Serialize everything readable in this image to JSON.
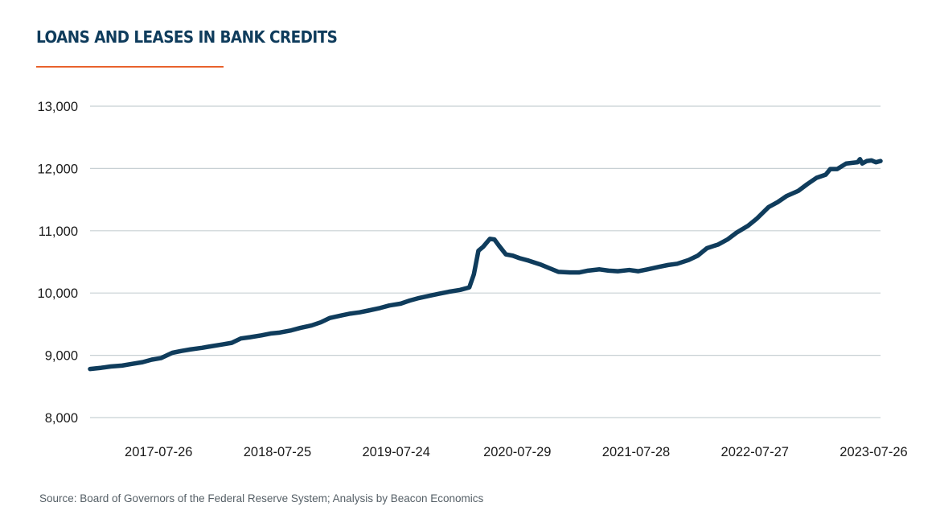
{
  "header": {
    "title": "LOANS AND LEASES IN BANK CREDITS"
  },
  "footer": {
    "source": "Source: Board of Governors of the Federal Reserve System; Analysis by Beacon Economics"
  },
  "colors": {
    "line": "#0f3c5c",
    "grid": "#c8d0d4",
    "accent": "#e8622c"
  },
  "chart_data": {
    "type": "line",
    "title": "LOANS AND LEASES IN BANK CREDITS",
    "xlabel": "",
    "ylabel": "",
    "grid": true,
    "ylim": [
      8000,
      13000
    ],
    "xlim": [
      "2016-12-28",
      "2023-08-16"
    ],
    "y_ticks": [
      8000,
      9000,
      10000,
      11000,
      12000,
      13000
    ],
    "y_tick_labels": [
      "8,000",
      "9,000",
      "10,000",
      "11,000",
      "12,000",
      "13,000"
    ],
    "x_ticks": [
      "2017-07-26",
      "2018-07-25",
      "2019-07-24",
      "2020-07-29",
      "2021-07-28",
      "2022-07-27",
      "2023-07-26"
    ],
    "x_tick_labels": [
      "2017-07-26",
      "2018-07-25",
      "2019-07-24",
      "2020-07-29",
      "2021-07-28",
      "2022-07-27",
      "2023-07-26"
    ],
    "series": [
      {
        "points": [
          [
            "2016-12-28",
            8780
          ],
          [
            "2017-02-01",
            8800
          ],
          [
            "2017-03-01",
            8820
          ],
          [
            "2017-04-05",
            8835
          ],
          [
            "2017-05-03",
            8860
          ],
          [
            "2017-06-07",
            8890
          ],
          [
            "2017-07-05",
            8930
          ],
          [
            "2017-08-02",
            8955
          ],
          [
            "2017-09-06",
            9040
          ],
          [
            "2017-10-04",
            9070
          ],
          [
            "2017-11-01",
            9095
          ],
          [
            "2017-12-06",
            9120
          ],
          [
            "2018-01-03",
            9145
          ],
          [
            "2018-02-07",
            9175
          ],
          [
            "2018-03-07",
            9200
          ],
          [
            "2018-04-04",
            9270
          ],
          [
            "2018-05-02",
            9290
          ],
          [
            "2018-06-06",
            9320
          ],
          [
            "2018-07-04",
            9350
          ],
          [
            "2018-08-01",
            9365
          ],
          [
            "2018-09-05",
            9400
          ],
          [
            "2018-10-03",
            9440
          ],
          [
            "2018-11-07",
            9480
          ],
          [
            "2018-12-05",
            9530
          ],
          [
            "2019-01-02",
            9600
          ],
          [
            "2019-02-06",
            9640
          ],
          [
            "2019-03-06",
            9670
          ],
          [
            "2019-04-03",
            9690
          ],
          [
            "2019-05-01",
            9720
          ],
          [
            "2019-06-05",
            9760
          ],
          [
            "2019-07-03",
            9800
          ],
          [
            "2019-08-07",
            9830
          ],
          [
            "2019-09-04",
            9880
          ],
          [
            "2019-10-02",
            9920
          ],
          [
            "2019-11-06",
            9960
          ],
          [
            "2019-12-04",
            9990
          ],
          [
            "2020-01-01",
            10020
          ],
          [
            "2020-02-05",
            10050
          ],
          [
            "2020-03-04",
            10090
          ],
          [
            "2020-03-18",
            10300
          ],
          [
            "2020-04-01",
            10680
          ],
          [
            "2020-04-15",
            10740
          ],
          [
            "2020-05-06",
            10870
          ],
          [
            "2020-05-20",
            10860
          ],
          [
            "2020-06-03",
            10760
          ],
          [
            "2020-06-24",
            10620
          ],
          [
            "2020-07-15",
            10600
          ],
          [
            "2020-08-05",
            10560
          ],
          [
            "2020-09-02",
            10520
          ],
          [
            "2020-10-07",
            10460
          ],
          [
            "2020-11-04",
            10400
          ],
          [
            "2020-12-02",
            10340
          ],
          [
            "2021-01-06",
            10330
          ],
          [
            "2021-02-03",
            10330
          ],
          [
            "2021-03-03",
            10360
          ],
          [
            "2021-04-07",
            10380
          ],
          [
            "2021-05-05",
            10360
          ],
          [
            "2021-06-02",
            10350
          ],
          [
            "2021-07-07",
            10370
          ],
          [
            "2021-08-04",
            10350
          ],
          [
            "2021-09-01",
            10380
          ],
          [
            "2021-10-06",
            10420
          ],
          [
            "2021-11-03",
            10450
          ],
          [
            "2021-12-01",
            10470
          ],
          [
            "2022-01-05",
            10530
          ],
          [
            "2022-02-02",
            10600
          ],
          [
            "2022-03-02",
            10720
          ],
          [
            "2022-04-06",
            10780
          ],
          [
            "2022-05-04",
            10860
          ],
          [
            "2022-06-01",
            10970
          ],
          [
            "2022-07-06",
            11080
          ],
          [
            "2022-08-03",
            11200
          ],
          [
            "2022-09-07",
            11380
          ],
          [
            "2022-10-05",
            11460
          ],
          [
            "2022-11-02",
            11560
          ],
          [
            "2022-12-07",
            11640
          ],
          [
            "2023-01-04",
            11750
          ],
          [
            "2023-02-01",
            11850
          ],
          [
            "2023-03-01",
            11900
          ],
          [
            "2023-03-15",
            11990
          ],
          [
            "2023-04-05",
            11990
          ],
          [
            "2023-05-03",
            12080
          ],
          [
            "2023-06-07",
            12100
          ],
          [
            "2023-06-14",
            12150
          ],
          [
            "2023-06-21",
            12080
          ],
          [
            "2023-07-05",
            12120
          ],
          [
            "2023-07-19",
            12130
          ],
          [
            "2023-08-02",
            12100
          ],
          [
            "2023-08-16",
            12120
          ]
        ]
      }
    ]
  }
}
